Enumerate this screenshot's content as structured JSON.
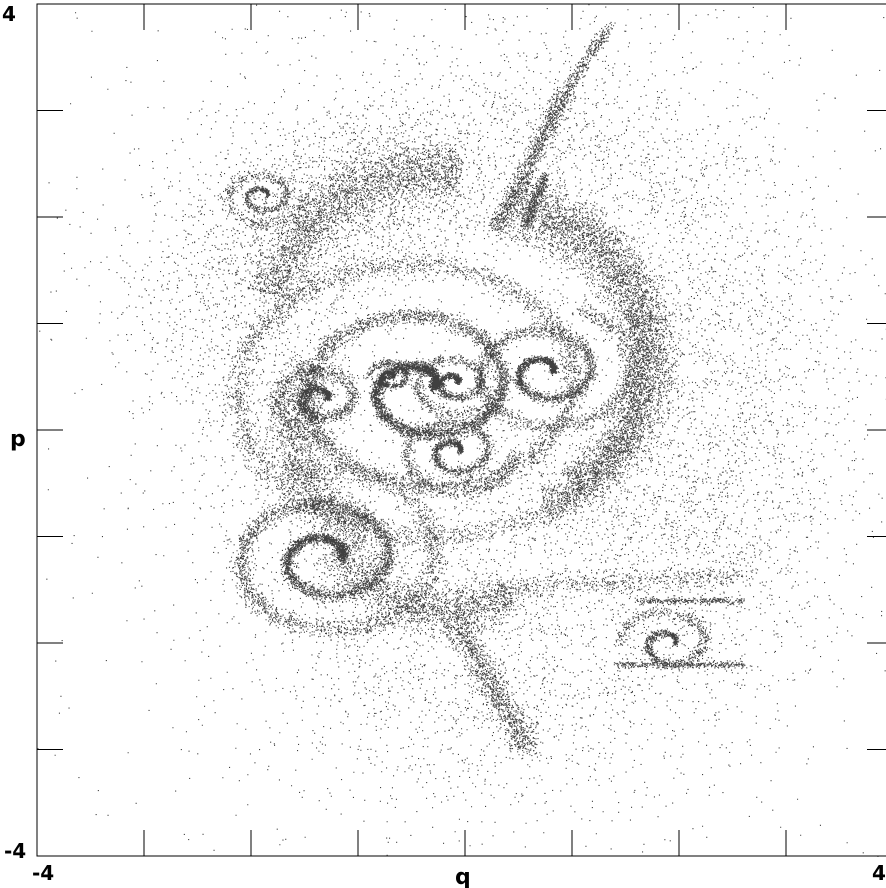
{
  "chart_data": {
    "type": "scatter",
    "title": "",
    "xlabel": "q",
    "ylabel": "p",
    "xlim": [
      -4,
      4
    ],
    "ylim": [
      -4,
      4
    ],
    "x_tick_labels": [
      "-4",
      "4"
    ],
    "y_tick_labels": [
      "-4",
      "4"
    ],
    "grid": false,
    "point_color": "#000000",
    "background": "#ffffff",
    "series": [
      {
        "structures": [
          {
            "kind": "spiral",
            "cx": -0.4,
            "cy": 0.4,
            "r0": 0.08,
            "r1": 1.9,
            "turns": 3.2,
            "width": 0.09,
            "n": 9000
          },
          {
            "kind": "spiral",
            "cx": 0.75,
            "cy": 0.55,
            "r0": 0.05,
            "r1": 0.75,
            "turns": 2.2,
            "width": 0.06,
            "n": 2800
          },
          {
            "kind": "spiral",
            "cx": -0.1,
            "cy": -0.2,
            "r0": 0.04,
            "r1": 0.5,
            "turns": 2.0,
            "width": 0.05,
            "n": 1500
          },
          {
            "kind": "spiral",
            "cx": -0.1,
            "cy": 0.45,
            "r0": 0.02,
            "r1": 0.4,
            "turns": 2.0,
            "width": 0.05,
            "n": 1200
          },
          {
            "kind": "spiral",
            "cx": -1.3,
            "cy": -1.2,
            "r0": 0.12,
            "r1": 1.0,
            "turns": 2.3,
            "width": 0.08,
            "n": 4500
          },
          {
            "kind": "spiral",
            "cx": -1.35,
            "cy": 0.3,
            "r0": 0.05,
            "r1": 0.42,
            "turns": 1.8,
            "width": 0.06,
            "n": 1400
          },
          {
            "kind": "spiral",
            "cx": -0.7,
            "cy": 0.5,
            "r0": 0.02,
            "r1": 0.18,
            "turns": 1.5,
            "width": 0.03,
            "n": 700
          },
          {
            "kind": "spiral",
            "cx": -1.9,
            "cy": 2.2,
            "r0": 0.04,
            "r1": 0.35,
            "turns": 2.0,
            "width": 0.04,
            "n": 700
          },
          {
            "kind": "spiral",
            "cx": 1.9,
            "cy": -2.0,
            "r0": 0.05,
            "r1": 0.4,
            "turns": 1.5,
            "width": 0.05,
            "n": 900
          },
          {
            "kind": "arc",
            "cx": 0.35,
            "cy": 0.7,
            "r": 1.45,
            "a0": -1.3,
            "a1": 1.5,
            "width": 0.1,
            "n": 3000
          },
          {
            "kind": "arc",
            "cx": 0.35,
            "cy": 0.7,
            "r": 1.3,
            "a0": -1.1,
            "a1": 1.3,
            "width": 0.08,
            "n": 1800
          },
          {
            "kind": "arc",
            "cx": -0.3,
            "cy": 0.9,
            "r": 1.55,
            "a0": 1.4,
            "a1": 2.9,
            "width": 0.12,
            "n": 2200
          },
          {
            "kind": "arc",
            "cx": -0.6,
            "cy": 0.0,
            "r": 1.0,
            "a0": 2.5,
            "a1": 4.4,
            "width": 0.12,
            "n": 1800
          },
          {
            "kind": "arc",
            "cx": -0.2,
            "cy": -0.6,
            "r": 1.1,
            "a0": 3.6,
            "a1": 5.3,
            "width": 0.12,
            "n": 1800
          },
          {
            "kind": "line",
            "x0": 0.3,
            "y0": 1.9,
            "x1": 0.95,
            "y1": 3.2,
            "width": 0.09,
            "n": 1100
          },
          {
            "kind": "line",
            "x0": 0.95,
            "y0": 3.2,
            "x1": 1.35,
            "y1": 3.8,
            "width": 0.06,
            "n": 300
          },
          {
            "kind": "line",
            "x0": 0.55,
            "y0": 1.9,
            "x1": 0.75,
            "y1": 2.4,
            "width": 0.06,
            "n": 450
          },
          {
            "kind": "line",
            "x0": -0.1,
            "y0": -1.8,
            "x1": 0.6,
            "y1": -3.0,
            "width": 0.14,
            "n": 1100
          },
          {
            "kind": "line",
            "x0": 0.3,
            "y0": -1.5,
            "x1": 2.6,
            "y1": -1.35,
            "width": 0.1,
            "n": 500
          },
          {
            "kind": "line",
            "x0": 1.4,
            "y0": -2.2,
            "x1": 2.6,
            "y1": -2.2,
            "width": 0.03,
            "n": 350
          },
          {
            "kind": "line",
            "x0": 1.6,
            "y0": -1.6,
            "x1": 2.6,
            "y1": -1.6,
            "width": 0.03,
            "n": 300
          },
          {
            "kind": "arc",
            "cx": 0.5,
            "cy": 0.2,
            "r": 2.5,
            "a0": 0.0,
            "a1": 6.283,
            "width": 0.55,
            "n": 3200
          },
          {
            "kind": "cloud",
            "cx": 2.2,
            "cy": 0.2,
            "sx": 0.55,
            "sy": 1.3,
            "n": 1300
          },
          {
            "kind": "cloud",
            "cx": -2.0,
            "cy": 1.5,
            "sx": 0.6,
            "sy": 0.7,
            "n": 1200
          },
          {
            "kind": "cloud",
            "cx": -0.9,
            "cy": 2.2,
            "sx": 0.6,
            "sy": 0.35,
            "n": 1200
          },
          {
            "kind": "cloud",
            "cx": 0.5,
            "cy": 2.8,
            "sx": 1.0,
            "sy": 0.6,
            "n": 800
          },
          {
            "kind": "cloud",
            "cx": 0.2,
            "cy": -2.4,
            "sx": 1.2,
            "sy": 0.7,
            "n": 1000
          },
          {
            "kind": "cloud",
            "cx": 1.0,
            "cy": -0.8,
            "sx": 0.9,
            "sy": 0.6,
            "n": 900
          },
          {
            "kind": "cloud",
            "cx": 0.0,
            "cy": 0.3,
            "sx": 3.3,
            "sy": 3.3,
            "n": 1800
          }
        ]
      }
    ]
  }
}
